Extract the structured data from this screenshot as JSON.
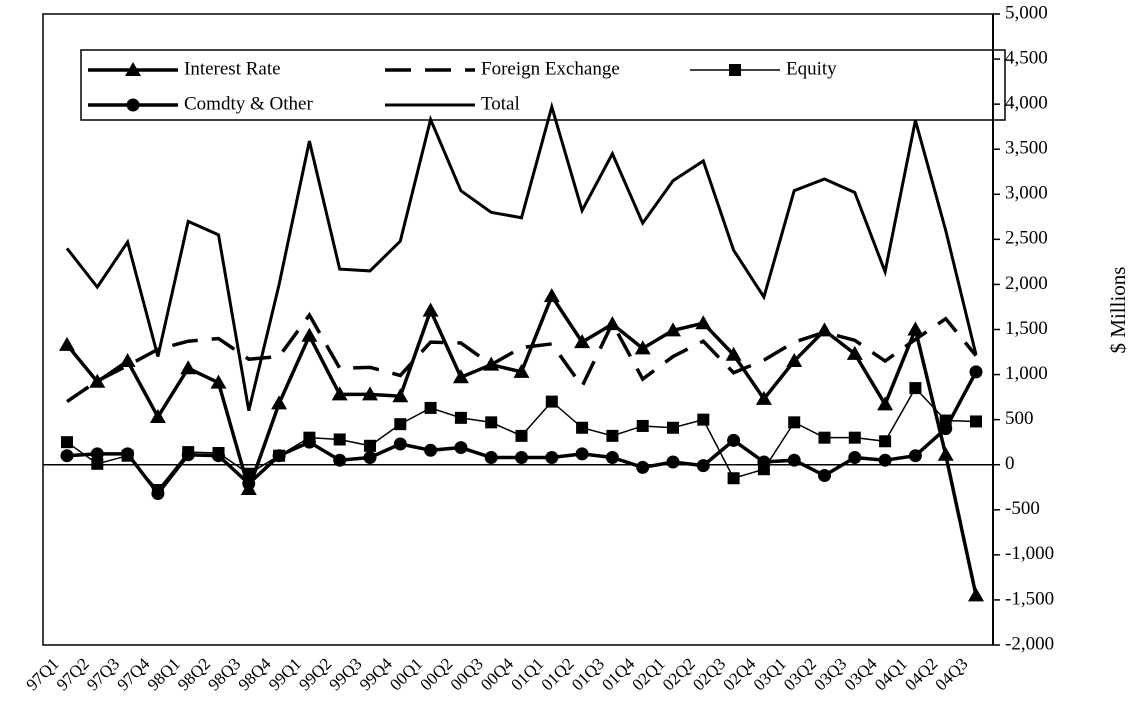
{
  "chart_data": {
    "type": "line",
    "y_label": "$ Millions",
    "categories": [
      "97Q1",
      "97Q2",
      "97Q3",
      "97Q4",
      "98Q1",
      "98Q2",
      "98Q3",
      "98Q4",
      "99Q1",
      "99Q2",
      "99Q3",
      "99Q4",
      "00Q1",
      "00Q2",
      "00Q3",
      "00Q4",
      "01Q1",
      "01Q2",
      "01Q3",
      "01Q4",
      "02Q1",
      "02Q2",
      "02Q3",
      "02Q4",
      "03Q1",
      "03Q2",
      "03Q3",
      "03Q4",
      "04Q1",
      "04Q2",
      "04Q3"
    ],
    "series": [
      {
        "name": "Interest Rate",
        "color": "#000000",
        "marker": "triangle",
        "dash": "solid",
        "line_width": 3.5,
        "values": [
          1330,
          920,
          1150,
          530,
          1070,
          910,
          -270,
          680,
          1430,
          780,
          780,
          760,
          1710,
          970,
          1110,
          1030,
          1870,
          1360,
          1560,
          1290,
          1490,
          1570,
          1220,
          730,
          1150,
          1490,
          1230,
          670,
          1500,
          110,
          -1450
        ]
      },
      {
        "name": "Foreign Exchange",
        "color": "#000000",
        "marker": "none",
        "dash": "dashed",
        "line_width": 3.5,
        "values": [
          700,
          930,
          1100,
          1280,
          1370,
          1400,
          1170,
          1200,
          1660,
          1070,
          1080,
          990,
          1360,
          1350,
          1110,
          1300,
          1340,
          870,
          1570,
          950,
          1200,
          1370,
          1020,
          1160,
          1360,
          1470,
          1380,
          1150,
          1390,
          1620,
          1210
        ]
      },
      {
        "name": "Equity",
        "color": "#000000",
        "marker": "square",
        "dash": "solid",
        "line_width": 1.5,
        "values": [
          250,
          10,
          100,
          -280,
          140,
          130,
          -100,
          100,
          300,
          280,
          210,
          450,
          630,
          520,
          470,
          320,
          700,
          410,
          320,
          430,
          410,
          500,
          -150,
          -50,
          470,
          300,
          300,
          260,
          850,
          490,
          480
        ]
      },
      {
        "name": "Comdty & Other",
        "color": "#000000",
        "marker": "circle",
        "dash": "solid",
        "line_width": 3.5,
        "values": [
          100,
          120,
          120,
          -320,
          110,
          100,
          -210,
          100,
          250,
          50,
          80,
          230,
          160,
          190,
          80,
          80,
          80,
          120,
          80,
          -30,
          30,
          -10,
          270,
          30,
          50,
          -120,
          80,
          50,
          100,
          400,
          1030
        ]
      },
      {
        "name": "Total",
        "color": "#000000",
        "marker": "none",
        "dash": "solid",
        "line_width": 3,
        "values": [
          2400,
          1970,
          2470,
          1200,
          2700,
          2550,
          600,
          2000,
          3590,
          2170,
          2150,
          2480,
          3830,
          3040,
          2800,
          2740,
          3970,
          2820,
          3450,
          2680,
          3150,
          3370,
          2380,
          1860,
          3040,
          3170,
          3020,
          2140,
          3820,
          2600,
          1220
        ]
      }
    ],
    "ylim": [
      -2000,
      5000
    ],
    "yticks": [
      {
        "value": -2000,
        "label": "-2,000"
      },
      {
        "value": -1500,
        "label": "-1,500"
      },
      {
        "value": -1000,
        "label": "-1,000"
      },
      -500,
      0,
      500,
      {
        "value": 1000,
        "label": "1,000"
      },
      {
        "value": 1500,
        "label": "1,500"
      },
      {
        "value": 2000,
        "label": "2,000"
      },
      {
        "value": 2500,
        "label": "2,500"
      },
      {
        "value": 3000,
        "label": "3,000"
      },
      {
        "value": 3500,
        "label": "3,500"
      },
      {
        "value": 4000,
        "label": "4,000"
      },
      {
        "value": 4500,
        "label": "4,500"
      },
      {
        "value": 5000,
        "label": "5,000"
      }
    ],
    "y_axis_side": "right",
    "zero_line": true,
    "grid": false
  }
}
